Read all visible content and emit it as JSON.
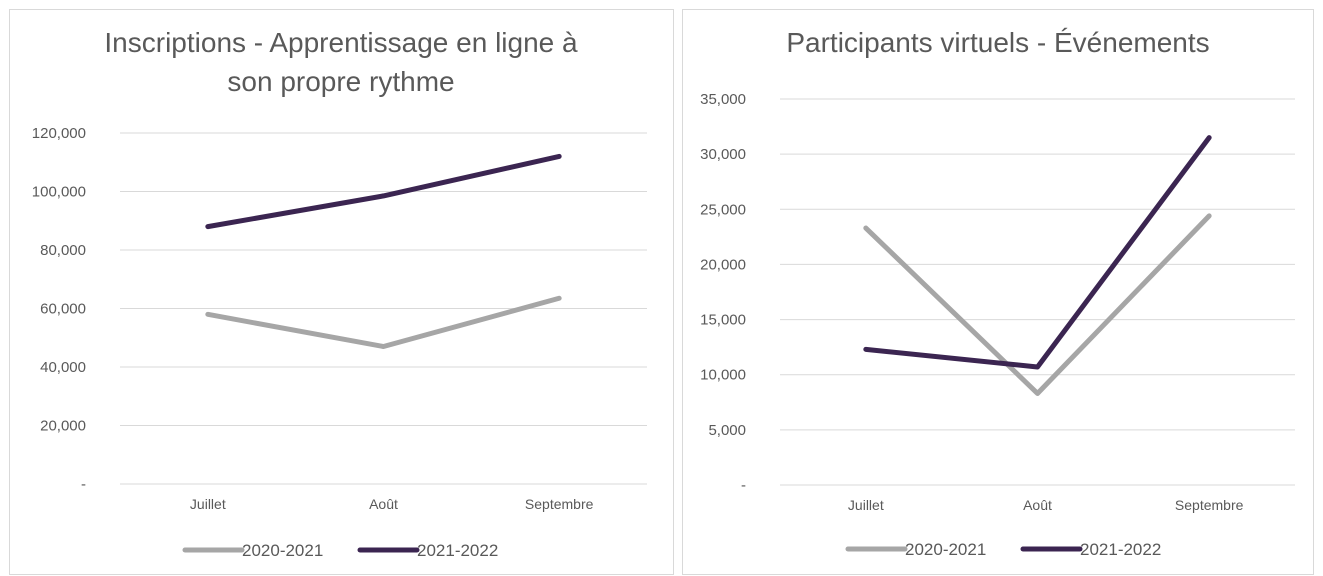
{
  "colors": {
    "series_2020": "#a6a6a6",
    "series_2021": "#3b2551"
  },
  "chart_data": [
    {
      "type": "line",
      "title_lines": [
        "Inscriptions - Apprentissage en ligne à",
        "son propre rythme"
      ],
      "categories": [
        "Juillet",
        "Août",
        "Septembre"
      ],
      "ylim": [
        0,
        120000
      ],
      "yticks": [
        0,
        20000,
        40000,
        60000,
        80000,
        100000,
        120000
      ],
      "ytick_labels": [
        "-",
        "20,000",
        "40,000",
        "60,000",
        "80,000",
        "100,000",
        "120,000"
      ],
      "grid": true,
      "legend_position": "bottom",
      "series": [
        {
          "name": "2020-2021",
          "values": [
            58000,
            47000,
            63500
          ]
        },
        {
          "name": "2021-2022",
          "values": [
            88000,
            98500,
            112000
          ]
        }
      ]
    },
    {
      "type": "line",
      "title_lines": [
        "Participants virtuels - Événements"
      ],
      "categories": [
        "Juillet",
        "Août",
        "Septembre"
      ],
      "ylim": [
        0,
        35000
      ],
      "yticks": [
        0,
        5000,
        10000,
        15000,
        20000,
        25000,
        30000,
        35000
      ],
      "ytick_labels": [
        "-",
        "5,000",
        "10,000",
        "15,000",
        "20,000",
        "25,000",
        "30,000",
        "35,000"
      ],
      "grid": true,
      "legend_position": "bottom",
      "series": [
        {
          "name": "2020-2021",
          "values": [
            23300,
            8300,
            24400
          ]
        },
        {
          "name": "2021-2022",
          "values": [
            12300,
            10700,
            31500
          ]
        }
      ]
    }
  ]
}
